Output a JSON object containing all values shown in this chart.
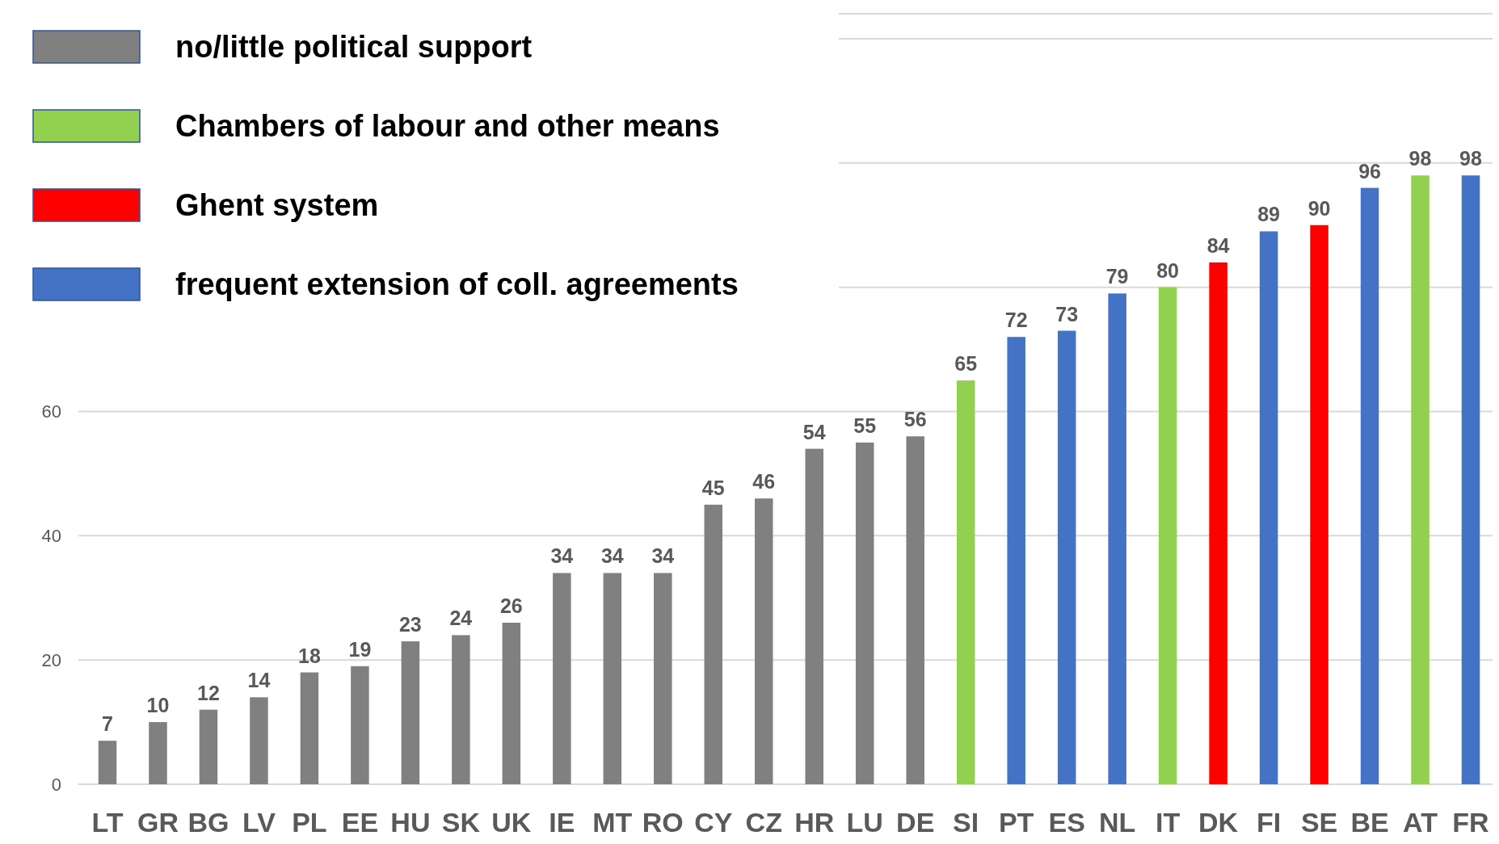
{
  "chart_data": {
    "type": "bar",
    "data_labels": true,
    "grid": "y",
    "legend": "top left",
    "categories": [
      "LT",
      "GR",
      "BG",
      "LV",
      "PL",
      "EE",
      "HU",
      "SK",
      "UK",
      "IE",
      "MT",
      "RO",
      "CY",
      "CZ",
      "HR",
      "LU",
      "DE",
      "SI",
      "PT",
      "ES",
      "NL",
      "IT",
      "DK",
      "FI",
      "SE",
      "BE",
      "AT",
      "FR"
    ],
    "ylim": [
      0,
      120
    ],
    "yticks": [
      0,
      20,
      40,
      60,
      {
        "value": 80,
        "label": null
      },
      {
        "value": 100,
        "label": null
      },
      {
        "value": 120,
        "label": null
      }
    ],
    "series": [
      {
        "name": "no/little political support",
        "color": "#808080",
        "values": [
          7,
          10,
          12,
          14,
          18,
          19,
          23,
          24,
          26,
          34,
          34,
          34,
          45,
          46,
          54,
          55,
          56,
          null,
          null,
          null,
          null,
          null,
          null,
          null,
          null,
          null,
          null,
          null
        ]
      },
      {
        "name": "Chambers of labour and other means",
        "color": "#92d050",
        "values": [
          null,
          null,
          null,
          null,
          null,
          null,
          null,
          null,
          null,
          null,
          null,
          null,
          null,
          null,
          null,
          null,
          null,
          65,
          null,
          null,
          null,
          80,
          null,
          null,
          null,
          null,
          98,
          null
        ]
      },
      {
        "name": "Ghent system",
        "color": "#ff0000",
        "values": [
          null,
          null,
          null,
          null,
          null,
          null,
          null,
          null,
          null,
          null,
          null,
          null,
          null,
          null,
          null,
          null,
          null,
          null,
          null,
          null,
          null,
          null,
          84,
          null,
          90,
          null,
          null,
          null
        ]
      },
      {
        "name": "frequent extension of coll. agreements",
        "color": "#4472c4",
        "values": [
          null,
          null,
          null,
          null,
          null,
          null,
          null,
          null,
          null,
          null,
          null,
          null,
          null,
          null,
          null,
          null,
          null,
          null,
          72,
          73,
          79,
          null,
          null,
          89,
          null,
          96,
          null,
          98
        ]
      }
    ]
  }
}
